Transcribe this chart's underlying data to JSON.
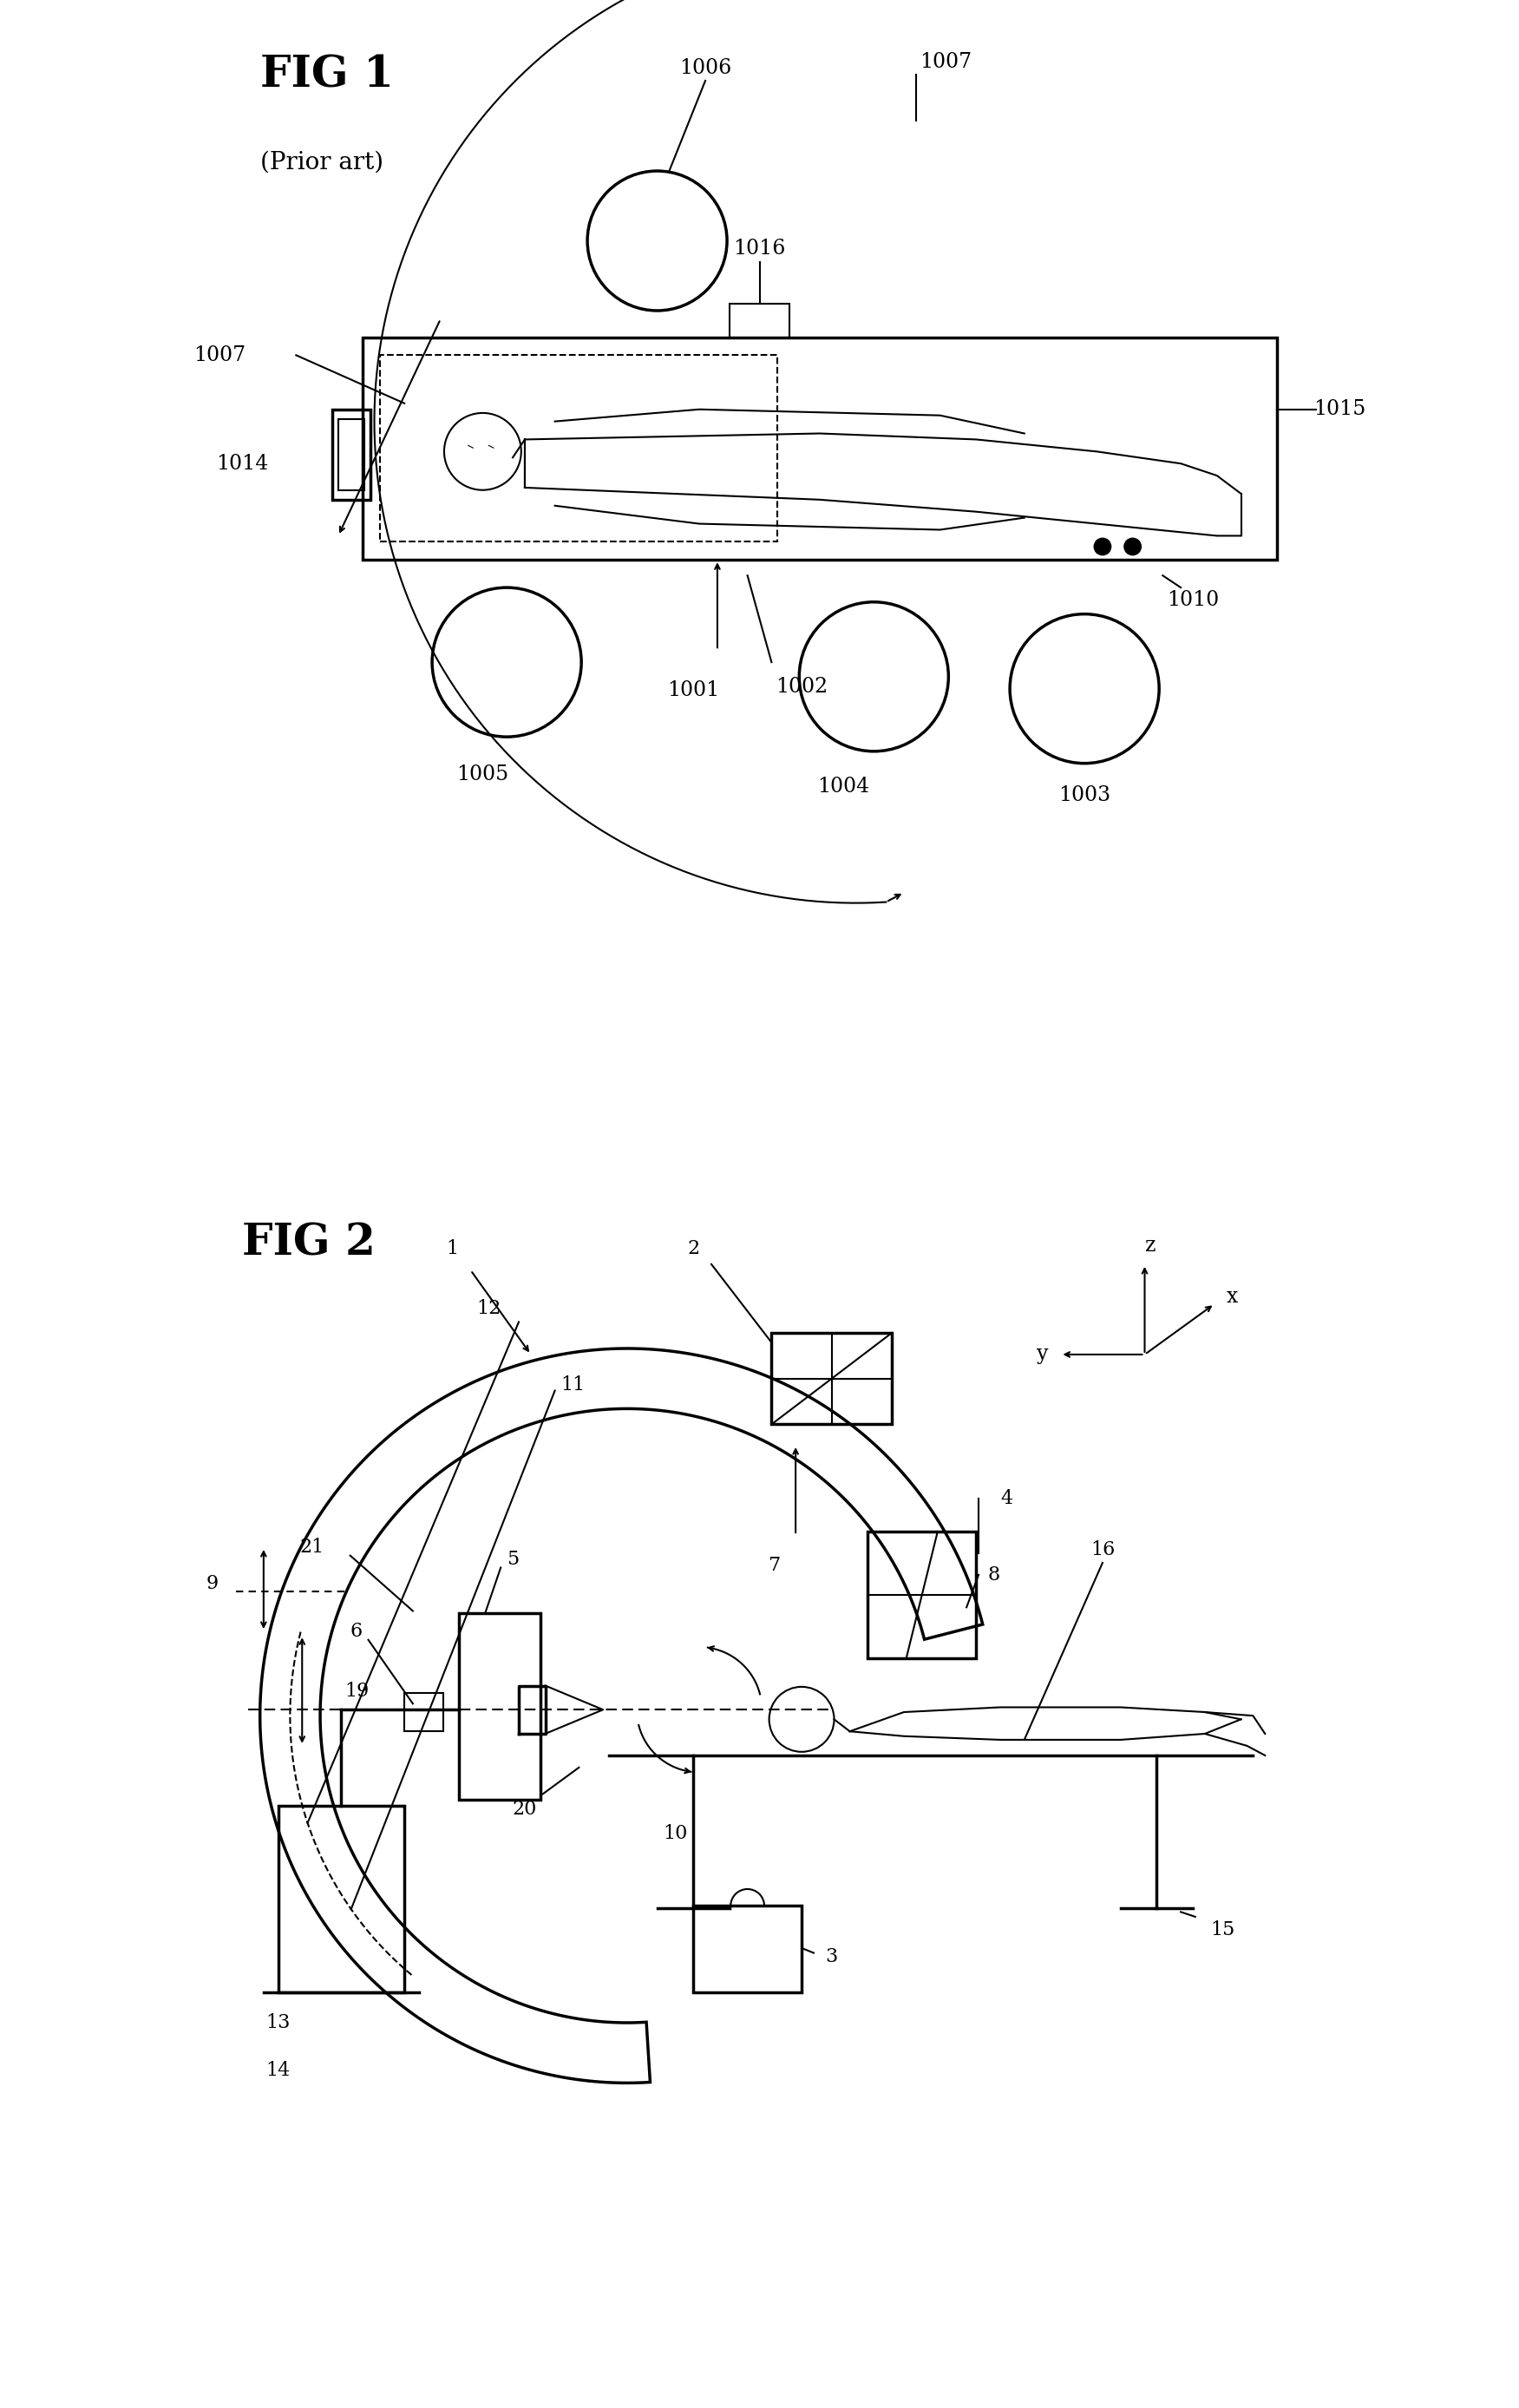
{
  "fig_width": 17.51,
  "fig_height": 27.75,
  "background_color": "#ffffff",
  "fig1_title": "FIG 1",
  "fig1_subtitle": "(Prior art)",
  "fig2_title": "FIG 2",
  "line_color": "#000000",
  "lw": 1.5,
  "lw_thick": 2.5
}
